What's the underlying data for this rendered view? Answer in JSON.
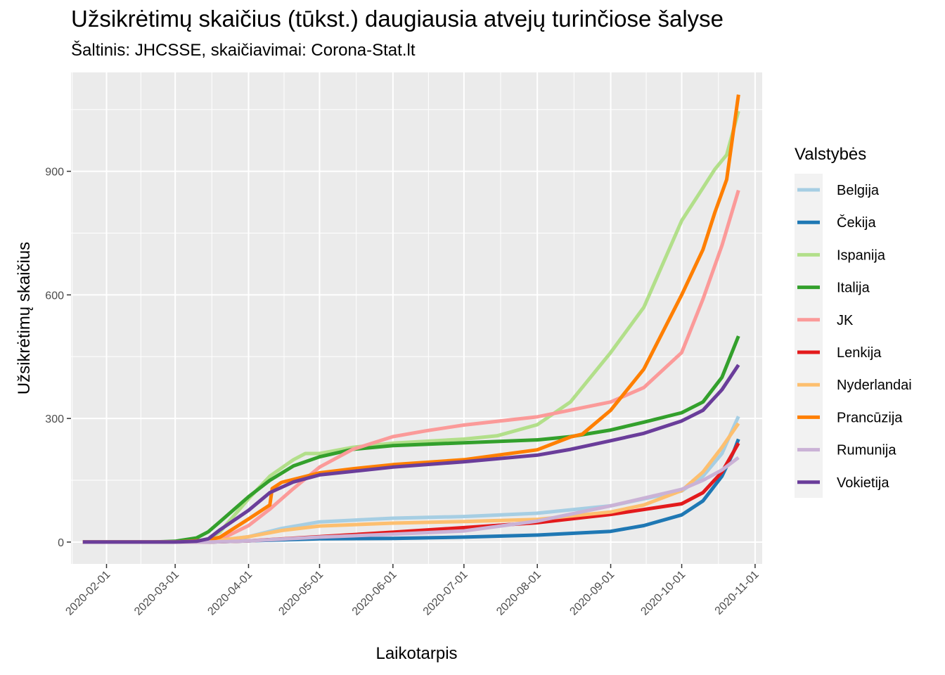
{
  "chart_data": {
    "type": "line",
    "title": "Užsikrėtimų skaičius (tūkst.) daugiausia atvejų turinčiose šalyse",
    "subtitle": "Šaltinis: JHCSSE, skaičiavimai: Corona-Stat.lt",
    "xlabel": "Laikotarpis",
    "ylabel": "Užsikrėtimų skaičius",
    "x_type": "date",
    "xlim": [
      "2020-01-17",
      "2020-11-04"
    ],
    "ylim": [
      -53,
      1140
    ],
    "x_ticks": [
      "2020-02-01",
      "2020-03-01",
      "2020-04-01",
      "2020-05-01",
      "2020-06-01",
      "2020-07-01",
      "2020-08-01",
      "2020-09-01",
      "2020-10-01",
      "2020-11-01"
    ],
    "y_ticks": [
      0,
      300,
      600,
      900
    ],
    "grid": true,
    "legend_title": "Valstybės",
    "legend_position": "right",
    "series": [
      {
        "name": "Belgija",
        "color": "#a6cee3",
        "points": [
          [
            "2020-01-22",
            0
          ],
          [
            "2020-03-01",
            0
          ],
          [
            "2020-03-15",
            1
          ],
          [
            "2020-04-01",
            13
          ],
          [
            "2020-04-15",
            33
          ],
          [
            "2020-05-01",
            49
          ],
          [
            "2020-06-01",
            58
          ],
          [
            "2020-07-01",
            62
          ],
          [
            "2020-08-01",
            70
          ],
          [
            "2020-09-01",
            88
          ],
          [
            "2020-10-01",
            124
          ],
          [
            "2020-10-10",
            160
          ],
          [
            "2020-10-18",
            215
          ],
          [
            "2020-10-23",
            280
          ],
          [
            "2020-10-25",
            305
          ]
        ]
      },
      {
        "name": "Čekija",
        "color": "#1f78b4",
        "points": [
          [
            "2020-01-22",
            0
          ],
          [
            "2020-03-01",
            0
          ],
          [
            "2020-03-15",
            0
          ],
          [
            "2020-04-01",
            3
          ],
          [
            "2020-05-01",
            8
          ],
          [
            "2020-06-01",
            9
          ],
          [
            "2020-07-01",
            12
          ],
          [
            "2020-08-01",
            17
          ],
          [
            "2020-09-01",
            26
          ],
          [
            "2020-09-15",
            40
          ],
          [
            "2020-10-01",
            66
          ],
          [
            "2020-10-10",
            100
          ],
          [
            "2020-10-18",
            160
          ],
          [
            "2020-10-23",
            220
          ],
          [
            "2020-10-25",
            250
          ]
        ]
      },
      {
        "name": "Ispanija",
        "color": "#b2df8a",
        "points": [
          [
            "2020-01-22",
            0
          ],
          [
            "2020-03-01",
            0
          ],
          [
            "2020-03-10",
            2
          ],
          [
            "2020-03-15",
            8
          ],
          [
            "2020-03-20",
            25
          ],
          [
            "2020-04-01",
            105
          ],
          [
            "2020-04-10",
            160
          ],
          [
            "2020-04-20",
            200
          ],
          [
            "2020-04-25",
            215
          ],
          [
            "2020-05-01",
            215
          ],
          [
            "2020-05-15",
            230
          ],
          [
            "2020-06-01",
            240
          ],
          [
            "2020-07-01",
            250
          ],
          [
            "2020-07-15",
            258
          ],
          [
            "2020-08-01",
            285
          ],
          [
            "2020-08-15",
            340
          ],
          [
            "2020-09-01",
            460
          ],
          [
            "2020-09-15",
            570
          ],
          [
            "2020-10-01",
            780
          ],
          [
            "2020-10-10",
            860
          ],
          [
            "2020-10-15",
            905
          ],
          [
            "2020-10-20",
            940
          ],
          [
            "2020-10-25",
            1046
          ]
        ]
      },
      {
        "name": "Italija",
        "color": "#33a02c",
        "points": [
          [
            "2020-01-22",
            0
          ],
          [
            "2020-02-20",
            0
          ],
          [
            "2020-02-25",
            1
          ],
          [
            "2020-03-01",
            2
          ],
          [
            "2020-03-10",
            10
          ],
          [
            "2020-03-15",
            25
          ],
          [
            "2020-03-20",
            50
          ],
          [
            "2020-04-01",
            110
          ],
          [
            "2020-04-10",
            150
          ],
          [
            "2020-04-20",
            185
          ],
          [
            "2020-05-01",
            207
          ],
          [
            "2020-05-15",
            225
          ],
          [
            "2020-06-01",
            234
          ],
          [
            "2020-07-01",
            241
          ],
          [
            "2020-08-01",
            248
          ],
          [
            "2020-08-15",
            256
          ],
          [
            "2020-09-01",
            272
          ],
          [
            "2020-09-15",
            291
          ],
          [
            "2020-10-01",
            314
          ],
          [
            "2020-10-10",
            340
          ],
          [
            "2020-10-18",
            400
          ],
          [
            "2020-10-25",
            500
          ]
        ]
      },
      {
        "name": "JK",
        "color": "#fb9a99",
        "points": [
          [
            "2020-01-22",
            0
          ],
          [
            "2020-03-10",
            0
          ],
          [
            "2020-03-15",
            2
          ],
          [
            "2020-03-20",
            6
          ],
          [
            "2020-04-01",
            40
          ],
          [
            "2020-04-10",
            80
          ],
          [
            "2020-04-20",
            130
          ],
          [
            "2020-05-01",
            182
          ],
          [
            "2020-05-15",
            225
          ],
          [
            "2020-06-01",
            256
          ],
          [
            "2020-06-15",
            270
          ],
          [
            "2020-07-01",
            284
          ],
          [
            "2020-08-01",
            304
          ],
          [
            "2020-09-01",
            340
          ],
          [
            "2020-09-15",
            375
          ],
          [
            "2020-10-01",
            460
          ],
          [
            "2020-10-10",
            590
          ],
          [
            "2020-10-18",
            720
          ],
          [
            "2020-10-25",
            854
          ]
        ]
      },
      {
        "name": "Lenkija",
        "color": "#e31a1c",
        "points": [
          [
            "2020-01-22",
            0
          ],
          [
            "2020-03-15",
            0
          ],
          [
            "2020-04-01",
            3
          ],
          [
            "2020-05-01",
            13
          ],
          [
            "2020-06-01",
            24
          ],
          [
            "2020-07-01",
            35
          ],
          [
            "2020-08-01",
            47
          ],
          [
            "2020-09-01",
            67
          ],
          [
            "2020-10-01",
            93
          ],
          [
            "2020-10-10",
            120
          ],
          [
            "2020-10-18",
            170
          ],
          [
            "2020-10-25",
            240
          ]
        ]
      },
      {
        "name": "Nyderlandai",
        "color": "#fdbf6f",
        "points": [
          [
            "2020-01-22",
            0
          ],
          [
            "2020-03-10",
            0
          ],
          [
            "2020-03-15",
            1
          ],
          [
            "2020-04-01",
            13
          ],
          [
            "2020-04-15",
            28
          ],
          [
            "2020-05-01",
            39
          ],
          [
            "2020-06-01",
            46
          ],
          [
            "2020-07-01",
            50
          ],
          [
            "2020-08-01",
            55
          ],
          [
            "2020-09-01",
            73
          ],
          [
            "2020-09-15",
            90
          ],
          [
            "2020-10-01",
            125
          ],
          [
            "2020-10-10",
            170
          ],
          [
            "2020-10-18",
            230
          ],
          [
            "2020-10-25",
            288
          ]
        ]
      },
      {
        "name": "Prancūzija",
        "color": "#ff7f00",
        "points": [
          [
            "2020-01-22",
            0
          ],
          [
            "2020-03-01",
            0
          ],
          [
            "2020-03-15",
            5
          ],
          [
            "2020-03-20",
            12
          ],
          [
            "2020-04-01",
            56
          ],
          [
            "2020-04-10",
            90
          ],
          [
            "2020-04-11",
            130
          ],
          [
            "2020-04-15",
            145
          ],
          [
            "2020-05-01",
            168
          ],
          [
            "2020-05-15",
            178
          ],
          [
            "2020-06-01",
            188
          ],
          [
            "2020-07-01",
            200
          ],
          [
            "2020-08-01",
            224
          ],
          [
            "2020-08-15",
            255
          ],
          [
            "2020-08-20",
            262
          ],
          [
            "2020-09-01",
            320
          ],
          [
            "2020-09-15",
            420
          ],
          [
            "2020-10-01",
            600
          ],
          [
            "2020-10-10",
            710
          ],
          [
            "2020-10-15",
            800
          ],
          [
            "2020-10-20",
            880
          ],
          [
            "2020-10-25",
            1086
          ]
        ]
      },
      {
        "name": "Rumunija",
        "color": "#cab2d6",
        "points": [
          [
            "2020-01-22",
            0
          ],
          [
            "2020-03-15",
            0
          ],
          [
            "2020-04-01",
            3
          ],
          [
            "2020-05-01",
            12
          ],
          [
            "2020-06-01",
            19
          ],
          [
            "2020-07-01",
            27
          ],
          [
            "2020-08-01",
            51
          ],
          [
            "2020-09-01",
            88
          ],
          [
            "2020-10-01",
            128
          ],
          [
            "2020-10-10",
            150
          ],
          [
            "2020-10-18",
            175
          ],
          [
            "2020-10-25",
            205
          ]
        ]
      },
      {
        "name": "Vokietija",
        "color": "#6a3d9a",
        "points": [
          [
            "2020-01-22",
            0
          ],
          [
            "2020-03-01",
            0
          ],
          [
            "2020-03-10",
            2
          ],
          [
            "2020-03-15",
            8
          ],
          [
            "2020-03-20",
            30
          ],
          [
            "2020-04-01",
            77
          ],
          [
            "2020-04-10",
            120
          ],
          [
            "2020-04-20",
            146
          ],
          [
            "2020-05-01",
            163
          ],
          [
            "2020-06-01",
            182
          ],
          [
            "2020-07-01",
            195
          ],
          [
            "2020-08-01",
            211
          ],
          [
            "2020-08-15",
            225
          ],
          [
            "2020-09-01",
            246
          ],
          [
            "2020-09-15",
            264
          ],
          [
            "2020-10-01",
            294
          ],
          [
            "2020-10-10",
            320
          ],
          [
            "2020-10-18",
            370
          ],
          [
            "2020-10-25",
            430
          ]
        ]
      }
    ]
  }
}
